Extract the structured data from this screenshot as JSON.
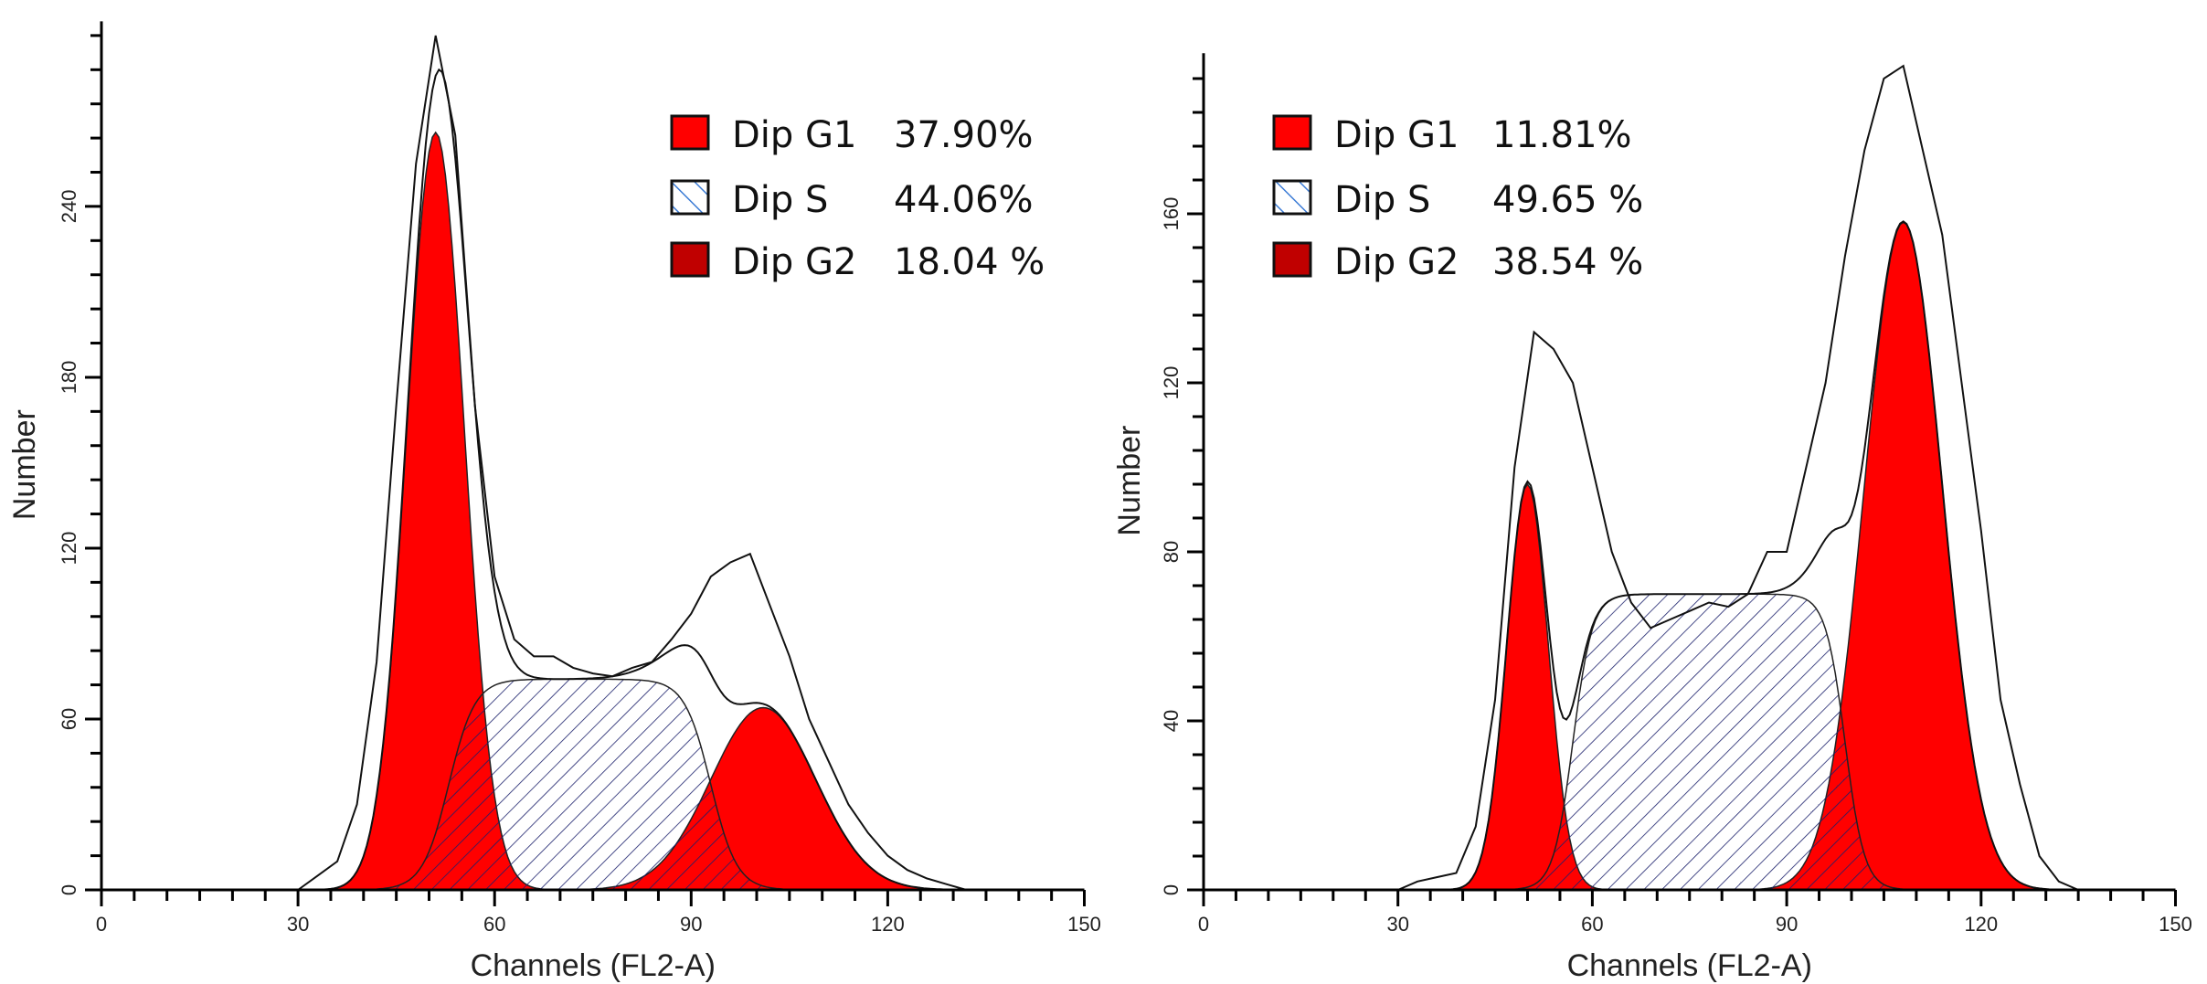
{
  "chart_data": [
    {
      "type": "area",
      "xlabel": "Channels (FL2-A)",
      "ylabel": "Number",
      "xlim": [
        0,
        150
      ],
      "ylim": [
        0,
        305
      ],
      "xticks": [
        0,
        30,
        60,
        90,
        120,
        150
      ],
      "yticks": [
        0,
        60,
        120,
        180,
        240
      ],
      "grid": false,
      "legend_position": "top-right",
      "legend": [
        {
          "label": "Dip G1",
          "value": "37.90%",
          "color": "#ff0000",
          "pattern": "solid"
        },
        {
          "label": "Dip S",
          "value": "44.06%",
          "color": "#ffffff",
          "pattern": "hatched"
        },
        {
          "label": "Dip G2",
          "value": "18.04 %",
          "color": "#c00000",
          "pattern": "solid"
        }
      ],
      "components": {
        "G1": {
          "center": 51,
          "peak": 266,
          "sd": 4.4
        },
        "S": {
          "start": 53,
          "end": 93,
          "plateau": 74,
          "edge": 4
        },
        "G2": {
          "center": 101,
          "peak": 64,
          "sd": 8
        }
      },
      "histogram": {
        "x": [
          30,
          33,
          36,
          39,
          42,
          45,
          48,
          51,
          54,
          57,
          60,
          63,
          66,
          69,
          72,
          75,
          78,
          81,
          84,
          87,
          90,
          93,
          96,
          99,
          102,
          105,
          108,
          111,
          114,
          117,
          120,
          123,
          126,
          129,
          132
        ],
        "y": [
          0,
          5,
          10,
          30,
          80,
          170,
          255,
          300,
          265,
          170,
          110,
          88,
          82,
          82,
          78,
          76,
          75,
          78,
          80,
          88,
          97,
          110,
          115,
          118,
          100,
          82,
          60,
          45,
          30,
          20,
          12,
          7,
          4,
          2,
          0
        ]
      }
    },
    {
      "type": "area",
      "xlabel": "Channels (FL2-A)",
      "ylabel": "Number",
      "xlim": [
        0,
        150
      ],
      "ylim": [
        0,
        198
      ],
      "xticks": [
        0,
        30,
        60,
        90,
        120,
        150
      ],
      "yticks": [
        0,
        40,
        80,
        120,
        160
      ],
      "grid": false,
      "legend_position": "top-left",
      "legend": [
        {
          "label": "Dip G1",
          "value": "11.81%",
          "color": "#ff0000",
          "pattern": "solid"
        },
        {
          "label": "Dip S",
          "value": "49.65 %",
          "color": "#ffffff",
          "pattern": "hatched"
        },
        {
          "label": "Dip G2",
          "value": "38.54 %",
          "color": "#c00000",
          "pattern": "solid"
        }
      ],
      "components": {
        "G1": {
          "center": 50,
          "peak": 96,
          "sd": 3.2
        },
        "S": {
          "start": 57,
          "end": 99,
          "plateau": 70,
          "edge": 3
        },
        "G2": {
          "center": 108,
          "peak": 158,
          "sd": 6
        }
      },
      "histogram": {
        "x": [
          30,
          33,
          36,
          39,
          42,
          45,
          48,
          51,
          54,
          57,
          60,
          63,
          66,
          69,
          72,
          75,
          78,
          81,
          84,
          87,
          90,
          93,
          96,
          99,
          102,
          105,
          108,
          111,
          114,
          117,
          120,
          123,
          126,
          129,
          132,
          135
        ],
        "y": [
          0,
          2,
          3,
          4,
          15,
          45,
          100,
          132,
          128,
          120,
          100,
          80,
          68,
          62,
          64,
          66,
          68,
          67,
          70,
          80,
          80,
          100,
          120,
          150,
          175,
          192,
          195,
          175,
          155,
          120,
          85,
          45,
          25,
          8,
          2,
          0
        ]
      }
    }
  ]
}
